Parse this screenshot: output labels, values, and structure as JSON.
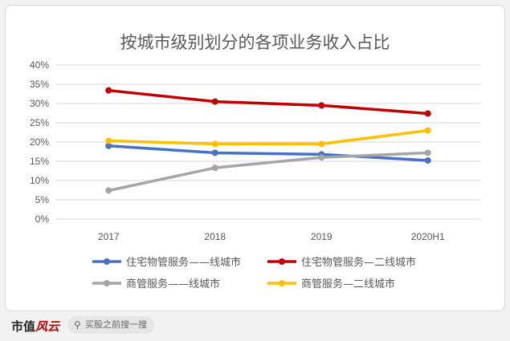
{
  "chart_data": {
    "type": "line",
    "title": "按城市级别划分的各项业务收入占比",
    "categories": [
      "2017",
      "2018",
      "2019",
      "2020H1"
    ],
    "ylim": [
      0,
      40
    ],
    "yticks": [
      "0%",
      "5%",
      "10%",
      "15%",
      "20%",
      "25%",
      "30%",
      "35%",
      "40%"
    ],
    "grid": true,
    "legend_position": "bottom",
    "series": [
      {
        "name": "住宅物管服务——线城市",
        "color": "#4472c4",
        "values": [
          19.0,
          17.2,
          16.8,
          15.2
        ]
      },
      {
        "name": "住宅物管服务—二线城市",
        "color": "#c00000",
        "values": [
          33.4,
          30.5,
          29.5,
          27.4
        ]
      },
      {
        "name": "商管服务——线城市",
        "color": "#a5a5a5",
        "values": [
          7.4,
          13.3,
          16.0,
          17.2
        ]
      },
      {
        "name": "商管服务—二线城市",
        "color": "#ffc000",
        "values": [
          20.3,
          19.5,
          19.5,
          23.0
        ]
      }
    ]
  },
  "footer": {
    "brand_main": "市值",
    "brand_mark": "风云",
    "search_placeholder": "买股之前搜一搜",
    "search_icon": "search-icon"
  }
}
